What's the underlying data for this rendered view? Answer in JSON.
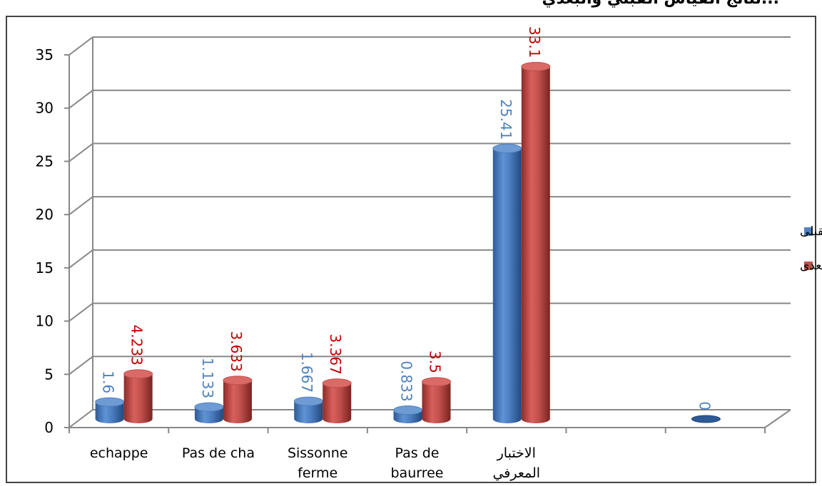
{
  "title_fragment": "...نتائج القياس القبلي والبعدي",
  "chart_data": {
    "type": "bar",
    "categories": [
      [
        "echappe"
      ],
      [
        "Pas de cha"
      ],
      [
        "Sissonne",
        "ferme"
      ],
      [
        "Pas de",
        "baurree"
      ],
      [
        "الاختبار",
        "المعرفي"
      ],
      [
        ""
      ],
      [
        ""
      ]
    ],
    "series": [
      {
        "name": "القياس القبلى",
        "values": [
          1.6,
          1.133,
          1.667,
          0.833,
          25.41,
          null,
          0
        ],
        "labels": [
          "1.6",
          "1.133",
          "1.667",
          "0.833",
          "25.41",
          "",
          "0"
        ],
        "color": "#4f81bd",
        "label_color": "#4f81bd"
      },
      {
        "name": "القياس البعدى",
        "values": [
          4.233,
          3.633,
          3.367,
          3.5,
          33.1,
          null,
          null
        ],
        "labels": [
          "4.233",
          "3.633",
          "3.367",
          "3.5",
          "33.1",
          "",
          ""
        ],
        "color": "#c0504d",
        "label_color": "#c00000"
      }
    ],
    "y_ticks": [
      "0",
      "5",
      "10",
      "15",
      "20",
      "25",
      "30",
      "35"
    ],
    "ylim": [
      0,
      35
    ],
    "grid": true,
    "legend_position": "right",
    "style": "3d-cylinder"
  }
}
